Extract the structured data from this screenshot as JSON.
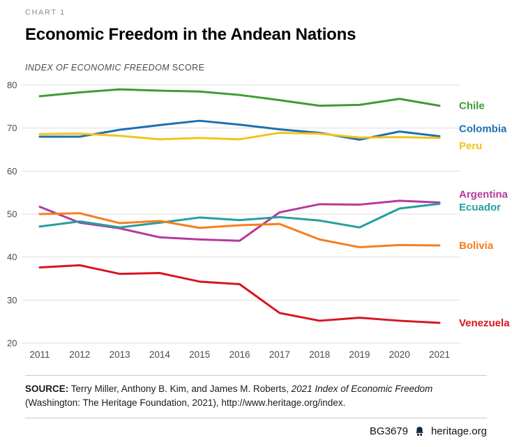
{
  "header": {
    "kicker": "CHART 1",
    "title": "Economic Freedom in the Andean Nations",
    "subtitle_italic": "INDEX OF ECONOMIC FREEDOM",
    "subtitle_regular": " SCORE"
  },
  "chart_data": {
    "type": "line",
    "title": "Economic Freedom in the Andean Nations",
    "ylabel": "Index of Economic Freedom Score",
    "x": [
      2011,
      2012,
      2013,
      2014,
      2015,
      2016,
      2017,
      2018,
      2019,
      2020,
      2021
    ],
    "ylim": [
      20,
      80
    ],
    "yticks": [
      20,
      30,
      40,
      50,
      60,
      70,
      80
    ],
    "grid": true,
    "legend_position": "right-of-line-ends",
    "series": [
      {
        "name": "Chile",
        "color": "#3f9b35",
        "label_dy": 0,
        "values": [
          77.4,
          78.3,
          79.0,
          78.7,
          78.5,
          77.7,
          76.5,
          75.2,
          75.4,
          76.8,
          75.2
        ]
      },
      {
        "name": "Colombia",
        "color": "#1f6fb2",
        "label_dy": -11,
        "values": [
          68.0,
          68.0,
          69.6,
          70.7,
          71.7,
          70.8,
          69.7,
          68.9,
          67.3,
          69.2,
          68.1
        ]
      },
      {
        "name": "Peru",
        "color": "#f0c419",
        "label_dy": 11,
        "values": [
          68.6,
          68.7,
          68.2,
          67.4,
          67.7,
          67.4,
          68.9,
          68.7,
          67.8,
          67.9,
          67.7
        ]
      },
      {
        "name": "Argentina",
        "color": "#b5399e",
        "label_dy": -12,
        "values": [
          51.7,
          48.0,
          46.7,
          44.6,
          44.1,
          43.8,
          50.4,
          52.3,
          52.2,
          53.1,
          52.7
        ]
      },
      {
        "name": "Ecuador",
        "color": "#269e9e",
        "label_dy": 5,
        "values": [
          47.1,
          48.3,
          46.9,
          48.0,
          49.2,
          48.6,
          49.3,
          48.5,
          46.9,
          51.3,
          52.4
        ]
      },
      {
        "name": "Bolivia",
        "color": "#f57e20",
        "label_dy": 0,
        "values": [
          50.0,
          50.2,
          47.9,
          48.4,
          46.8,
          47.4,
          47.7,
          44.1,
          42.3,
          42.8,
          42.7
        ]
      },
      {
        "name": "Venezuela",
        "color": "#d6161f",
        "label_dy": 0,
        "values": [
          37.6,
          38.1,
          36.1,
          36.3,
          34.3,
          33.7,
          27.0,
          25.2,
          25.9,
          25.2,
          24.7
        ]
      }
    ]
  },
  "footer": {
    "source_label": "SOURCE:",
    "source_authors": " Terry Miller, Anthony B. Kim, and James M. Roberts, ",
    "source_work": "2021 Index of Economic Freedom",
    "source_rest": "(Washington: The Heritage Foundation, 2021), http://www.heritage.org/index.",
    "doc_id": "BG3679",
    "site": "heritage.org",
    "bell_icon_color": "#172940"
  },
  "colors": {
    "gridline": "#dcdcdc",
    "tick_label": "#4a4a4a",
    "title": "#000000"
  }
}
